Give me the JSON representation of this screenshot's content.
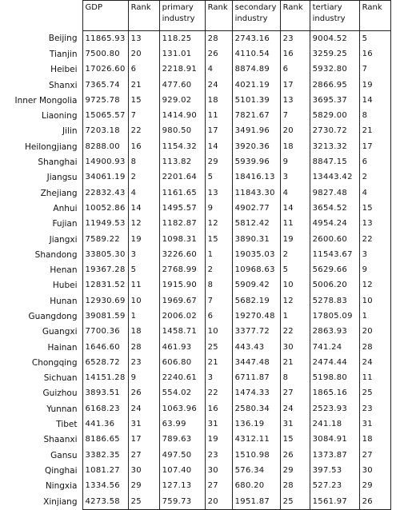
{
  "headers": {
    "region": "",
    "gdp": "GDP",
    "rank1": "Rank",
    "primary": "primary industry",
    "rank2": "Rank",
    "secondary": "secondary industry",
    "rank3": "Rank",
    "tertiary": "tertiary industry",
    "rank4": "Rank"
  },
  "rows": [
    {
      "region": "Beijing",
      "gdp": "11865.93",
      "r1": "13",
      "primary": "118.25",
      "r2": "28",
      "secondary": "2743.16",
      "r3": "23",
      "tertiary": "9004.52",
      "r4": "5"
    },
    {
      "region": "Tianjin",
      "gdp": "7500.80",
      "r1": "20",
      "primary": "131.01",
      "r2": "26",
      "secondary": "4110.54",
      "r3": "16",
      "tertiary": "3259.25",
      "r4": "16"
    },
    {
      "region": "Heibei",
      "gdp": "17026.60",
      "r1": "6",
      "primary": "2218.91",
      "r2": "4",
      "secondary": "8874.89",
      "r3": "6",
      "tertiary": "5932.80",
      "r4": "7"
    },
    {
      "region": "Shanxi",
      "gdp": "7365.74",
      "r1": "21",
      "primary": "477.60",
      "r2": "24",
      "secondary": "4021.19",
      "r3": "17",
      "tertiary": "2866.95",
      "r4": "19"
    },
    {
      "region": "Inner Mongolia",
      "gdp": "9725.78",
      "r1": "15",
      "primary": "929.02",
      "r2": "18",
      "secondary": "5101.39",
      "r3": "13",
      "tertiary": "3695.37",
      "r4": "14"
    },
    {
      "region": "Liaoning",
      "gdp": "15065.57",
      "r1": "7",
      "primary": "1414.90",
      "r2": "11",
      "secondary": "7821.67",
      "r3": "7",
      "tertiary": "5829.00",
      "r4": "8"
    },
    {
      "region": "Jilin",
      "gdp": "7203.18",
      "r1": "22",
      "primary": "980.50",
      "r2": "17",
      "secondary": "3491.96",
      "r3": "20",
      "tertiary": "2730.72",
      "r4": "21"
    },
    {
      "region": "Heilongjiang",
      "gdp": "8288.00",
      "r1": "16",
      "primary": "1154.32",
      "r2": "14",
      "secondary": "3920.36",
      "r3": "18",
      "tertiary": "3213.32",
      "r4": "17"
    },
    {
      "region": "Shanghai",
      "gdp": "14900.93",
      "r1": "8",
      "primary": "113.82",
      "r2": "29",
      "secondary": "5939.96",
      "r3": "9",
      "tertiary": "8847.15",
      "r4": "6"
    },
    {
      "region": "Jiangsu",
      "gdp": "34061.19",
      "r1": "2",
      "primary": "2201.64",
      "r2": "5",
      "secondary": "18416.13",
      "r3": "3",
      "tertiary": "13443.42",
      "r4": "2"
    },
    {
      "region": "Zhejiang",
      "gdp": "22832.43",
      "r1": "4",
      "primary": "1161.65",
      "r2": "13",
      "secondary": "11843.30",
      "r3": "4",
      "tertiary": "9827.48",
      "r4": "4"
    },
    {
      "region": "Anhui",
      "gdp": "10052.86",
      "r1": "14",
      "primary": "1495.57",
      "r2": "9",
      "secondary": "4902.77",
      "r3": "14",
      "tertiary": "3654.52",
      "r4": "15"
    },
    {
      "region": "Fujian",
      "gdp": "11949.53",
      "r1": "12",
      "primary": "1182.87",
      "r2": "12",
      "secondary": "5812.42",
      "r3": "11",
      "tertiary": "4954.24",
      "r4": "13"
    },
    {
      "region": "Jiangxi",
      "gdp": "7589.22",
      "r1": "19",
      "primary": "1098.31",
      "r2": "15",
      "secondary": "3890.31",
      "r3": "19",
      "tertiary": "2600.60",
      "r4": "22"
    },
    {
      "region": "Shandong",
      "gdp": "33805.30",
      "r1": "3",
      "primary": "3226.60",
      "r2": "1",
      "secondary": "19035.03",
      "r3": "2",
      "tertiary": "11543.67",
      "r4": "3"
    },
    {
      "region": "Henan",
      "gdp": "19367.28",
      "r1": "5",
      "primary": "2768.99",
      "r2": "2",
      "secondary": "10968.63",
      "r3": "5",
      "tertiary": "5629.66",
      "r4": "9"
    },
    {
      "region": "Hubei",
      "gdp": "12831.52",
      "r1": "11",
      "primary": "1915.90",
      "r2": "8",
      "secondary": "5909.42",
      "r3": "10",
      "tertiary": "5006.20",
      "r4": "12"
    },
    {
      "region": "Hunan",
      "gdp": "12930.69",
      "r1": "10",
      "primary": "1969.67",
      "r2": "7",
      "secondary": "5682.19",
      "r3": "12",
      "tertiary": "5278.83",
      "r4": "10"
    },
    {
      "region": "Guangdong",
      "gdp": "39081.59",
      "r1": "1",
      "primary": "2006.02",
      "r2": "6",
      "secondary": "19270.48",
      "r3": "1",
      "tertiary": "17805.09",
      "r4": "1"
    },
    {
      "region": "Guangxi",
      "gdp": "7700.36",
      "r1": "18",
      "primary": "1458.71",
      "r2": "10",
      "secondary": "3377.72",
      "r3": "22",
      "tertiary": "2863.93",
      "r4": "20"
    },
    {
      "region": "Hainan",
      "gdp": "1646.60",
      "r1": "28",
      "primary": "461.93",
      "r2": "25",
      "secondary": "443.43",
      "r3": "30",
      "tertiary": "741.24",
      "r4": "28"
    },
    {
      "region": "Chongqing",
      "gdp": "6528.72",
      "r1": "23",
      "primary": "606.80",
      "r2": "21",
      "secondary": "3447.48",
      "r3": "21",
      "tertiary": "2474.44",
      "r4": "24"
    },
    {
      "region": "Sichuan",
      "gdp": "14151.28",
      "r1": "9",
      "primary": "2240.61",
      "r2": "3",
      "secondary": "6711.87",
      "r3": "8",
      "tertiary": "5198.80",
      "r4": "11"
    },
    {
      "region": "Guizhou",
      "gdp": "3893.51",
      "r1": "26",
      "primary": "554.02",
      "r2": "22",
      "secondary": "1474.33",
      "r3": "27",
      "tertiary": "1865.16",
      "r4": "25"
    },
    {
      "region": "Yunnan",
      "gdp": "6168.23",
      "r1": "24",
      "primary": "1063.96",
      "r2": "16",
      "secondary": "2580.34",
      "r3": "24",
      "tertiary": "2523.93",
      "r4": "23"
    },
    {
      "region": "Tibet",
      "gdp": "441.36",
      "r1": "31",
      "primary": "63.99",
      "r2": "31",
      "secondary": "136.19",
      "r3": "31",
      "tertiary": "241.18",
      "r4": "31"
    },
    {
      "region": "Shaanxi",
      "gdp": "8186.65",
      "r1": "17",
      "primary": "789.63",
      "r2": "19",
      "secondary": "4312.11",
      "r3": "15",
      "tertiary": "3084.91",
      "r4": "18"
    },
    {
      "region": "Gansu",
      "gdp": "3382.35",
      "r1": "27",
      "primary": "497.50",
      "r2": "23",
      "secondary": "1510.98",
      "r3": "26",
      "tertiary": "1373.87",
      "r4": "27"
    },
    {
      "region": "Qinghai",
      "gdp": "1081.27",
      "r1": "30",
      "primary": "107.40",
      "r2": "30",
      "secondary": "576.34",
      "r3": "29",
      "tertiary": "397.53",
      "r4": "30"
    },
    {
      "region": "Ningxia",
      "gdp": "1334.56",
      "r1": "29",
      "primary": "127.13",
      "r2": "27",
      "secondary": "680.20",
      "r3": "28",
      "tertiary": "527.23",
      "r4": "29"
    },
    {
      "region": "Xinjiang",
      "gdp": "4273.58",
      "r1": "25",
      "primary": "759.73",
      "r2": "20",
      "secondary": "1951.87",
      "r3": "25",
      "tertiary": "1561.97",
      "r4": "26"
    }
  ]
}
